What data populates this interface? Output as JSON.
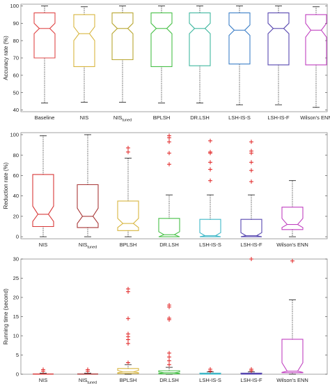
{
  "chart_data": [
    {
      "type": "boxplot",
      "title": "",
      "xlabel": "",
      "ylabel": "Accuracy rate (%)",
      "ylim": [
        39,
        101
      ],
      "yticks": [
        40,
        50,
        60,
        70,
        80,
        90,
        100
      ],
      "notched": true,
      "categories": [
        {
          "main": "Baseline",
          "sub": ""
        },
        {
          "main": "NIS",
          "sub": ""
        },
        {
          "main": "NIS",
          "sub": "tuned"
        },
        {
          "main": "BPLSH",
          "sub": ""
        },
        {
          "main": "DR.LSH",
          "sub": ""
        },
        {
          "main": "LSH-IS-S",
          "sub": ""
        },
        {
          "main": "LSH-IS-F",
          "sub": ""
        },
        {
          "main": "Wilson's ENN",
          "sub": ""
        }
      ],
      "colors": [
        "#e04848",
        "#d8b640",
        "#b8a630",
        "#48c048",
        "#40b8a0",
        "#3e80c8",
        "#5848b0",
        "#c040c0"
      ],
      "boxes": [
        {
          "whislo": 44,
          "q1": 70,
          "med": 87,
          "q3": 96,
          "whishi": 100,
          "notch": [
            84,
            90
          ],
          "fliers": []
        },
        {
          "whislo": 44.5,
          "q1": 65,
          "med": 84,
          "q3": 95,
          "whishi": 99.5,
          "notch": [
            80,
            88
          ],
          "fliers": []
        },
        {
          "whislo": 44.5,
          "q1": 69,
          "med": 87,
          "q3": 96,
          "whishi": 100,
          "notch": [
            84,
            90
          ],
          "fliers": []
        },
        {
          "whislo": 44,
          "q1": 65,
          "med": 87,
          "q3": 96,
          "whishi": 100,
          "notch": [
            84,
            90
          ],
          "fliers": []
        },
        {
          "whislo": 44,
          "q1": 65.5,
          "med": 87,
          "q3": 96,
          "whishi": 100,
          "notch": [
            84,
            90
          ],
          "fliers": []
        },
        {
          "whislo": 43,
          "q1": 66.5,
          "med": 86,
          "q3": 96,
          "whishi": 100,
          "notch": [
            83,
            89
          ],
          "fliers": []
        },
        {
          "whislo": 43,
          "q1": 66,
          "med": 87,
          "q3": 96,
          "whishi": 100,
          "notch": [
            84,
            90
          ],
          "fliers": []
        },
        {
          "whislo": 41.5,
          "q1": 66,
          "med": 86,
          "q3": 95,
          "whishi": 99.5,
          "notch": [
            82,
            90
          ],
          "fliers": []
        }
      ]
    },
    {
      "type": "boxplot",
      "title": "",
      "xlabel": "",
      "ylabel": "Reduction rate (%)",
      "ylim": [
        -2,
        102
      ],
      "yticks": [
        0,
        20,
        40,
        60,
        80,
        100
      ],
      "notched": true,
      "categories": [
        {
          "main": "NIS",
          "sub": ""
        },
        {
          "main": "NIS",
          "sub": "tuned"
        },
        {
          "main": "BPLSH",
          "sub": ""
        },
        {
          "main": "DR.LSH",
          "sub": ""
        },
        {
          "main": "LSH-IS-S",
          "sub": ""
        },
        {
          "main": "LSH-IS-F",
          "sub": ""
        },
        {
          "main": "Wilson's ENN",
          "sub": ""
        }
      ],
      "colors": [
        "#d83838",
        "#a83838",
        "#d8b640",
        "#48c048",
        "#40b8c8",
        "#5848b0",
        "#c040c0"
      ],
      "boxes": [
        {
          "whislo": 0,
          "q1": 10,
          "med": 22,
          "q3": 61,
          "whishi": 99,
          "notch": [
            15,
            30
          ],
          "fliers": []
        },
        {
          "whislo": 0,
          "q1": 9,
          "med": 20,
          "q3": 51,
          "whishi": 100,
          "notch": [
            13,
            28
          ],
          "fliers": []
        },
        {
          "whislo": 0,
          "q1": 6,
          "med": 13,
          "q3": 35,
          "whishi": 77,
          "notch": [
            9,
            18
          ],
          "fliers": [
            83,
            87
          ]
        },
        {
          "whislo": 0,
          "q1": 0,
          "med": 2,
          "q3": 18,
          "whishi": 41,
          "notch": [
            0,
            5
          ],
          "fliers": [
            71,
            82,
            93,
            97,
            99
          ]
        },
        {
          "whislo": 0,
          "q1": 0,
          "med": 1,
          "q3": 17,
          "whishi": 41,
          "notch": [
            0,
            4
          ],
          "fliers": [
            55,
            66,
            73,
            82,
            83,
            94
          ]
        },
        {
          "whislo": 0,
          "q1": 0,
          "med": 1,
          "q3": 17,
          "whishi": 41,
          "notch": [
            0,
            4
          ],
          "fliers": [
            54,
            65,
            73,
            82,
            84,
            93
          ]
        },
        {
          "whislo": 0,
          "q1": 7,
          "med": 12,
          "q3": 29,
          "whishi": 55,
          "notch": [
            9,
            18
          ],
          "fliers": []
        }
      ]
    },
    {
      "type": "boxplot",
      "title": "",
      "xlabel": "",
      "ylabel": "Running time (second)",
      "ylim": [
        0,
        30
      ],
      "yticks": [
        0,
        5,
        10,
        15,
        20,
        25,
        30
      ],
      "notched": true,
      "categories": [
        {
          "main": "NIS",
          "sub": ""
        },
        {
          "main": "NIS",
          "sub": "tuned"
        },
        {
          "main": "BPLSH",
          "sub": ""
        },
        {
          "main": "DR.LSH",
          "sub": ""
        },
        {
          "main": "LSH-IS-S",
          "sub": ""
        },
        {
          "main": "LSH-IS-F",
          "sub": ""
        },
        {
          "main": "Wilson's ENN",
          "sub": ""
        }
      ],
      "colors": [
        "#d83838",
        "#a83838",
        "#d8b640",
        "#48c048",
        "#40b8c8",
        "#5848b0",
        "#c040c0"
      ],
      "boxes": [
        {
          "whislo": 0,
          "q1": 0,
          "med": 0.05,
          "q3": 0.1,
          "whishi": 0.3,
          "notch": [
            0,
            0.1
          ],
          "fliers": [
            0.8,
            1.2
          ]
        },
        {
          "whislo": 0,
          "q1": 0,
          "med": 0.05,
          "q3": 0.1,
          "whishi": 0.3,
          "notch": [
            0,
            0.1
          ],
          "fliers": [
            0.8,
            1.2
          ]
        },
        {
          "whislo": 0,
          "q1": 0.2,
          "med": 0.6,
          "q3": 1.5,
          "whishi": 2.5,
          "notch": [
            0.4,
            1.0
          ],
          "fliers": [
            3,
            8,
            9,
            9.8,
            10.5,
            14.5,
            21.5,
            22.2
          ]
        },
        {
          "whislo": 0,
          "q1": 0.1,
          "med": 0.4,
          "q3": 0.9,
          "whishi": 1.8,
          "notch": [
            0.2,
            0.6
          ],
          "fliers": [
            2.5,
            3.5,
            4.5,
            5.5,
            14.2,
            14.6,
            17.5,
            18
          ]
        },
        {
          "whislo": 0,
          "q1": 0,
          "med": 0.1,
          "q3": 0.3,
          "whishi": 0.6,
          "notch": [
            0,
            0.2
          ],
          "fliers": [
            0.8,
            1.3
          ]
        },
        {
          "whislo": 0,
          "q1": 0,
          "med": 0.1,
          "q3": 0.3,
          "whishi": 0.6,
          "notch": [
            0,
            0.2
          ],
          "fliers": [
            0.9,
            1.3,
            30
          ]
        },
        {
          "whislo": 0,
          "q1": 0.4,
          "med": 0.8,
          "q3": 9.1,
          "whishi": 19.4,
          "notch": [
            0.5,
            3
          ],
          "fliers": [
            29.5
          ]
        }
      ]
    }
  ]
}
